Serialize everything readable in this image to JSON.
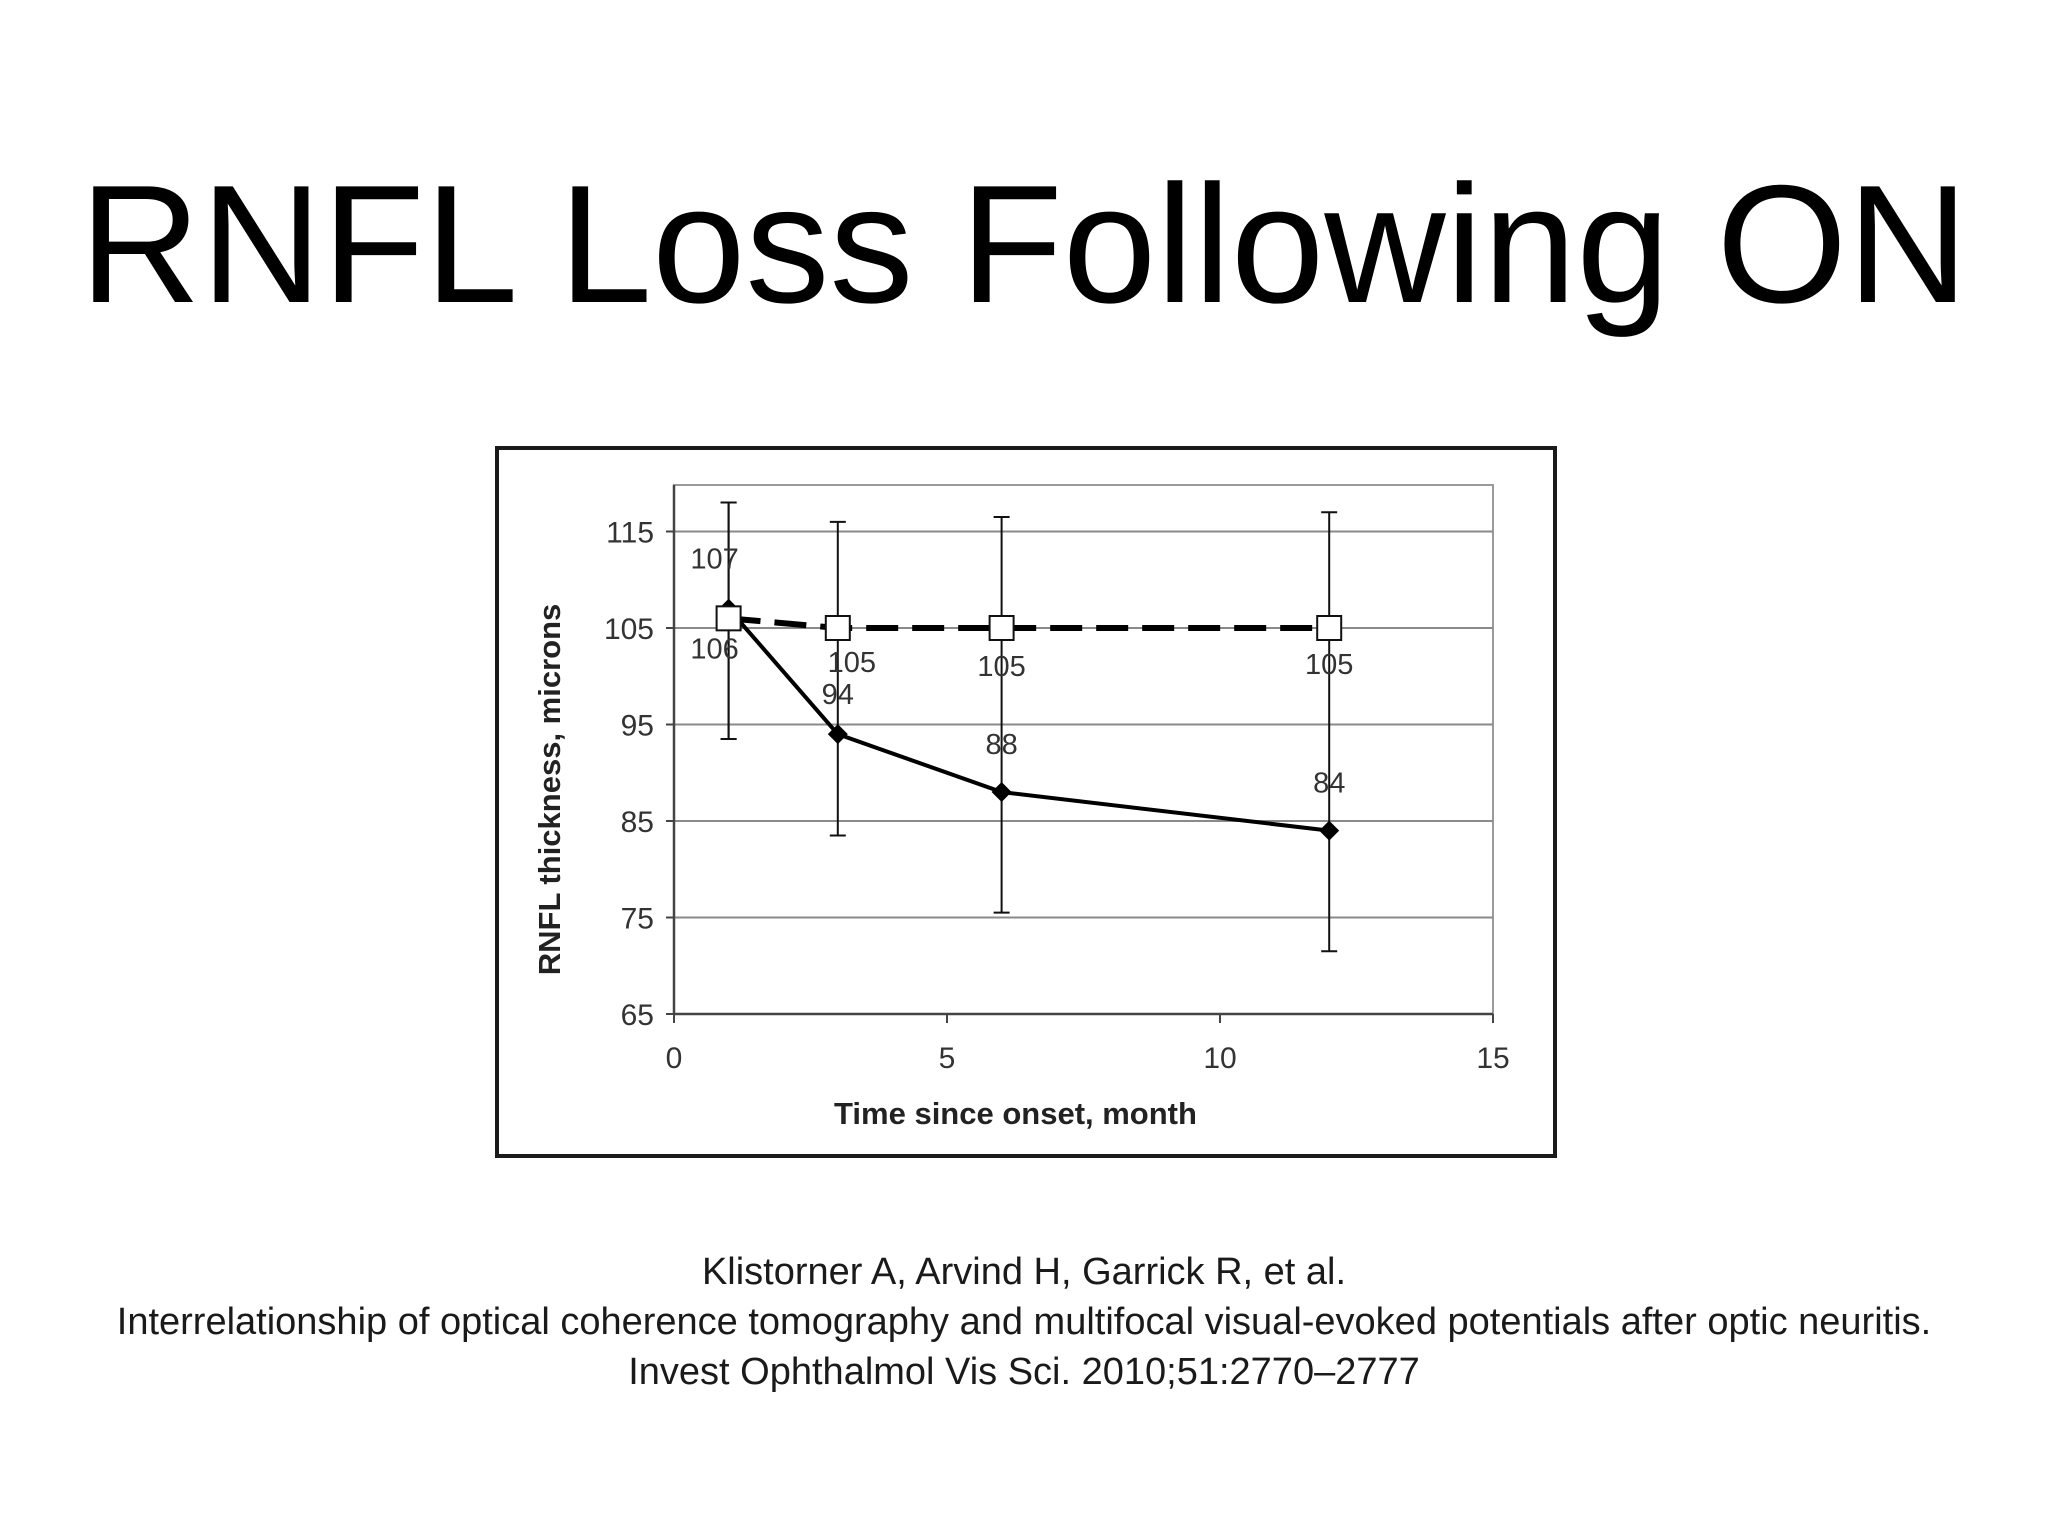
{
  "slide": {
    "title": "RNFL Loss Following ON",
    "citation": [
      "Klistorner A, Arvind H, Garrick R, et al.",
      "Interrelationship of optical coherence tomography and multifocal visual-evoked potentials after optic neuritis.",
      "Invest Ophthalmol Vis Sci. 2010;51:2770–2777"
    ]
  },
  "chart_data": {
    "type": "line",
    "title": "",
    "xlabel": "Time since onset, month",
    "ylabel": "RNFL thickness, microns",
    "xlim": [
      0,
      15
    ],
    "ylim": [
      65,
      120
    ],
    "x_ticks": [
      0,
      5,
      10,
      15
    ],
    "y_ticks": [
      65,
      75,
      85,
      95,
      105,
      115
    ],
    "grid": "horizontal",
    "legend": "none",
    "series": [
      {
        "marker": "diamond-filled",
        "line_style": "solid",
        "color": "#000000",
        "x": [
          1,
          3,
          6,
          12
        ],
        "y": [
          107,
          94,
          88,
          84
        ],
        "labels": [
          "107",
          "94",
          "88",
          "84"
        ],
        "error_upper": [
          118,
          116,
          116.5,
          117
        ],
        "error_lower": [
          93.5,
          83.5,
          75.5,
          71.5
        ]
      },
      {
        "marker": "square-open",
        "line_style": "dashed",
        "color": "#000000",
        "x": [
          1,
          3,
          6,
          12
        ],
        "y": [
          106,
          105,
          105,
          105
        ],
        "labels": [
          "106",
          "105",
          "105",
          "105"
        ],
        "error_upper": [
          118,
          116,
          116.5,
          117
        ],
        "error_lower": [
          93.5,
          null,
          null,
          null
        ]
      }
    ]
  }
}
